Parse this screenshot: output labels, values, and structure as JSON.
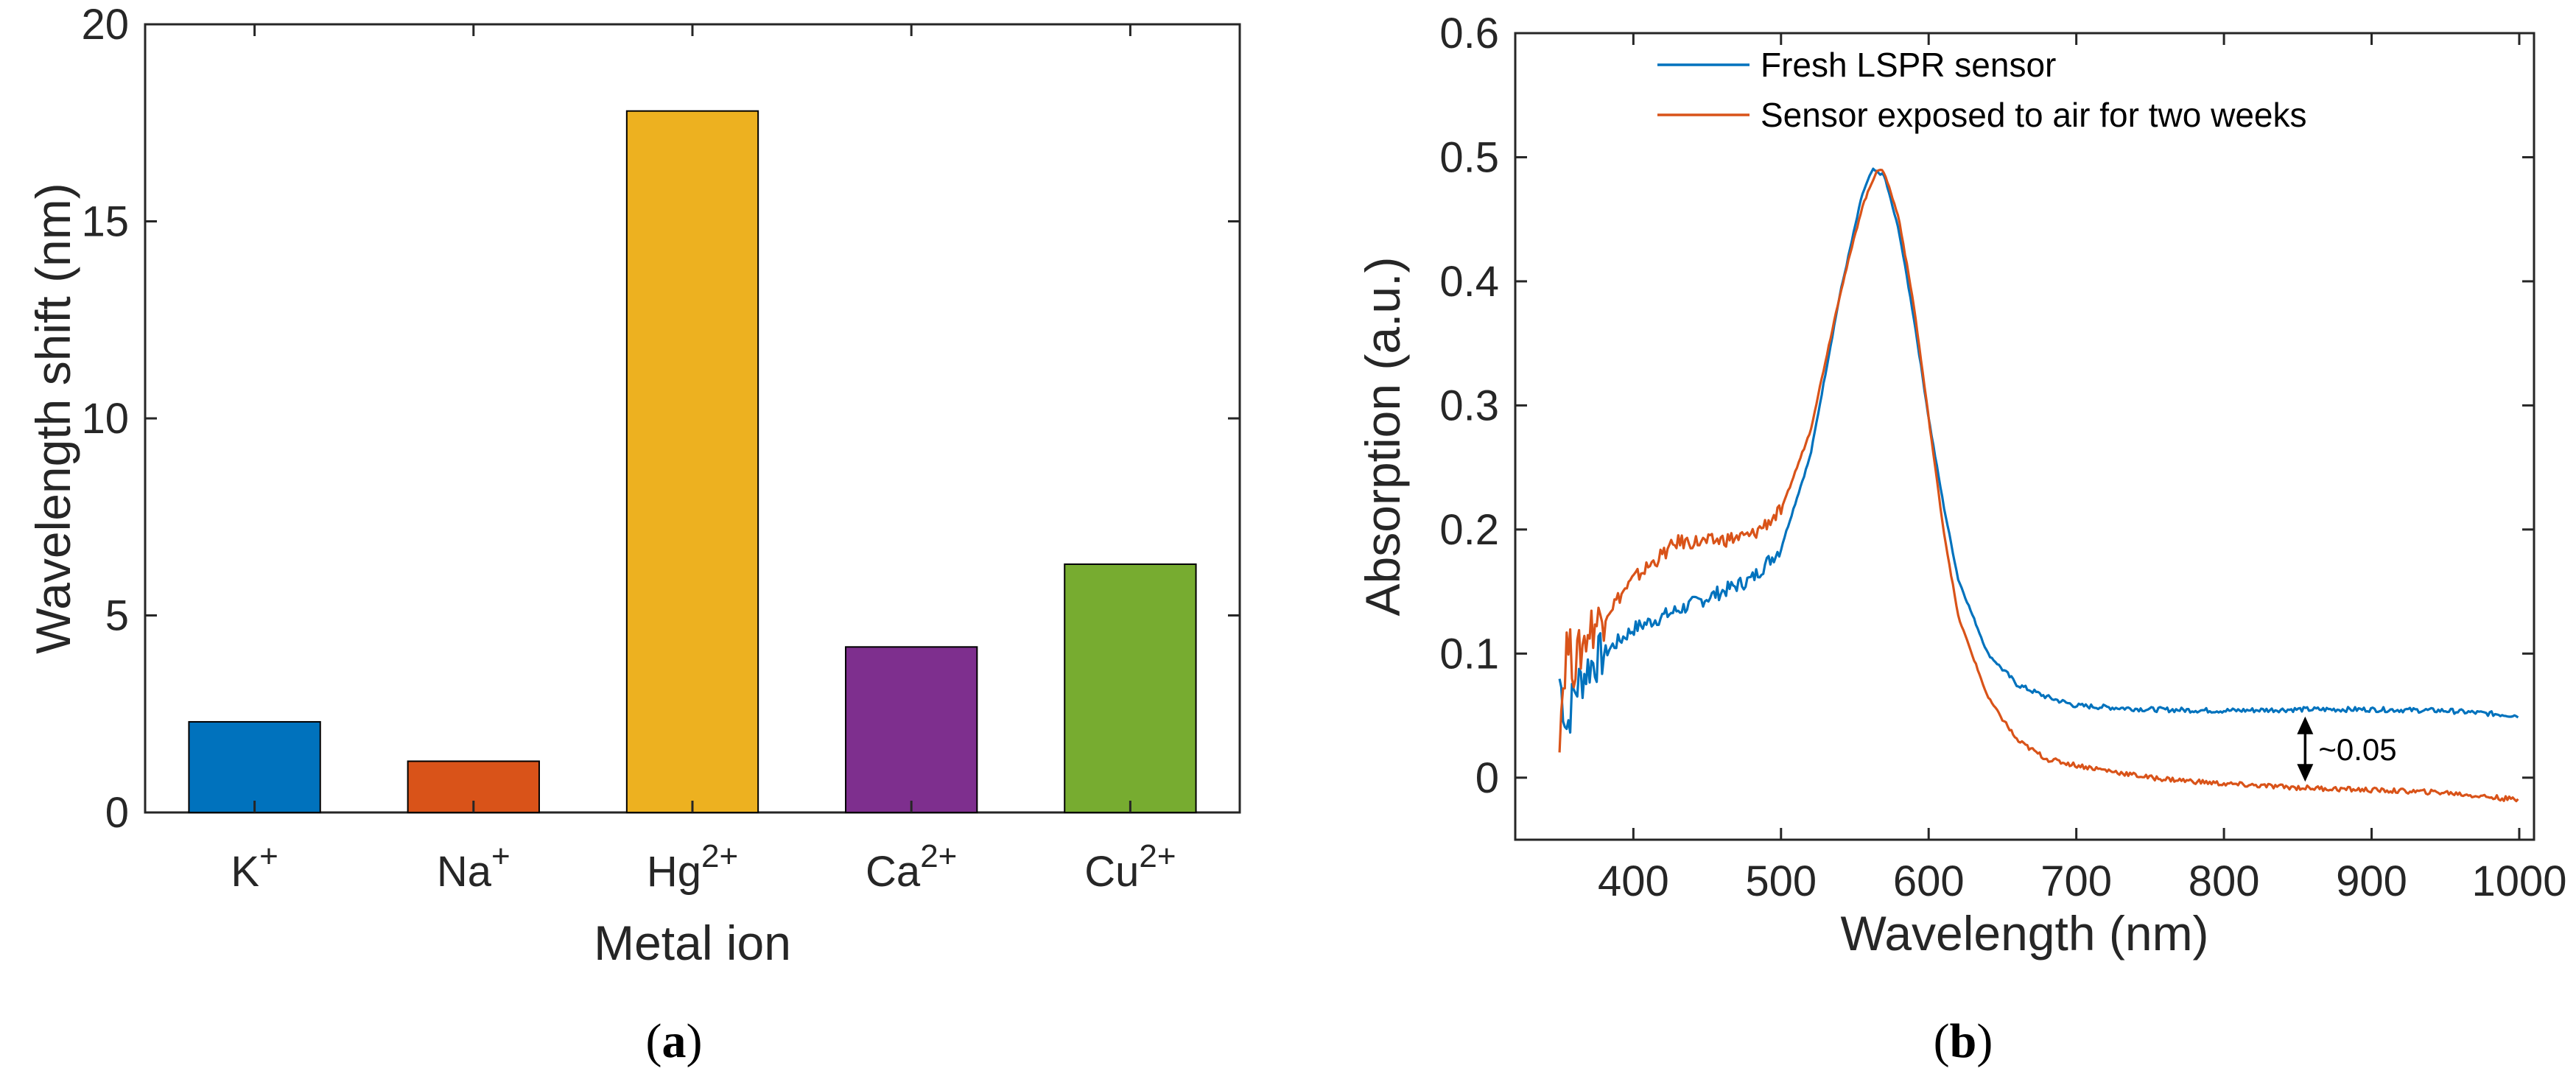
{
  "chart_data": [
    {
      "type": "bar",
      "panel_label": "a",
      "categories": [
        {
          "base": "K",
          "sup": "+"
        },
        {
          "base": "Na",
          "sup": "+"
        },
        {
          "base": "Hg",
          "sup": "2+"
        },
        {
          "base": "Ca",
          "sup": "2+"
        },
        {
          "base": "Cu",
          "sup": "2+"
        }
      ],
      "values": [
        2.3,
        1.3,
        17.8,
        4.2,
        6.3
      ],
      "colors": [
        "#0072BD",
        "#D95319",
        "#EDB120",
        "#7E2F8E",
        "#77AC30"
      ],
      "xlabel": "Metal ion",
      "ylabel": "Wavelength shift (nm)",
      "ylim": [
        0,
        20
      ],
      "yticks": [
        0,
        5,
        10,
        15,
        20
      ],
      "ytick_labels": [
        "0",
        "5",
        "10",
        "15",
        "20"
      ]
    },
    {
      "type": "line",
      "panel_label": "b",
      "xlabel": "Wavelength (nm)",
      "ylabel": "Absorption (a.u.)",
      "xlim": [
        320,
        1010
      ],
      "ylim": [
        -0.05,
        0.6
      ],
      "xticks": [
        400,
        500,
        600,
        700,
        800,
        900,
        1000
      ],
      "xtick_labels": [
        "400",
        "500",
        "600",
        "700",
        "800",
        "900",
        "1000"
      ],
      "yticks": [
        0,
        0.1,
        0.2,
        0.3,
        0.4,
        0.5,
        0.6
      ],
      "ytick_labels": [
        "0",
        "0.1",
        "0.2",
        "0.3",
        "0.4",
        "0.5",
        "0.6"
      ],
      "legend_position": "top",
      "series": [
        {
          "name": "Fresh LSPR sensor",
          "color": "#0072BD",
          "x": [
            350,
            355,
            360,
            370,
            380,
            400,
            420,
            450,
            480,
            500,
            520,
            540,
            555,
            562,
            570,
            580,
            590,
            600,
            610,
            620,
            640,
            660,
            680,
            700,
            750,
            800,
            850,
            900,
            950,
            1000
          ],
          "y": [
            0.08,
            0.04,
            0.07,
            0.09,
            0.1,
            0.12,
            0.13,
            0.145,
            0.16,
            0.185,
            0.26,
            0.39,
            0.47,
            0.49,
            0.485,
            0.44,
            0.37,
            0.29,
            0.22,
            0.16,
            0.1,
            0.075,
            0.065,
            0.058,
            0.055,
            0.054,
            0.055,
            0.055,
            0.054,
            0.05
          ]
        },
        {
          "name": "Sensor exposed to air for two weeks",
          "color": "#D95319",
          "x": [
            350,
            355,
            360,
            370,
            380,
            400,
            420,
            430,
            450,
            480,
            500,
            520,
            540,
            555,
            565,
            570,
            580,
            590,
            600,
            610,
            620,
            640,
            660,
            680,
            700,
            750,
            800,
            850,
            900,
            950,
            1000
          ],
          "y": [
            0.04,
            0.11,
            0.09,
            0.12,
            0.13,
            0.16,
            0.18,
            0.19,
            0.19,
            0.195,
            0.215,
            0.28,
            0.39,
            0.46,
            0.49,
            0.488,
            0.45,
            0.38,
            0.29,
            0.2,
            0.13,
            0.065,
            0.03,
            0.015,
            0.01,
            0.0,
            -0.005,
            -0.008,
            -0.01,
            -0.012,
            -0.018
          ]
        }
      ],
      "annotation": {
        "text": "~0.05",
        "x": 855,
        "y_top": 0.054,
        "y_bottom": -0.008
      }
    }
  ]
}
